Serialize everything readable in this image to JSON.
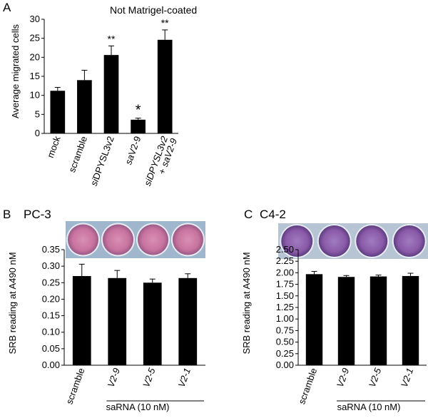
{
  "chart_data": [
    {
      "panel": "A",
      "type": "bar",
      "title": "Not Matrigel-coated",
      "ylabel": "Average migrated cells",
      "ylim": [
        0,
        30
      ],
      "yticks": [
        0,
        5,
        10,
        15,
        20,
        25,
        30
      ],
      "categories": [
        {
          "text": "mock",
          "italic": ""
        },
        {
          "text": "scramble",
          "italic": ""
        },
        {
          "text": "DPYSL3v2",
          "italic": "si"
        },
        {
          "text": "V2-9",
          "italic": "sa"
        },
        {
          "text": "siDPYSL3v2",
          "italic": "",
          "line2": "+ ",
          "line2_italic": "saV2-9"
        }
      ],
      "values": [
        11.2,
        14.0,
        20.6,
        3.6,
        24.6
      ],
      "errors": [
        0.9,
        2.6,
        2.4,
        0.4,
        2.6
      ],
      "significance": [
        "",
        "",
        "**",
        "*",
        "**"
      ],
      "bar_color": "#000000"
    },
    {
      "panel": "B",
      "type": "bar",
      "title": "PC-3",
      "ylabel": "SRB reading at A490 nM",
      "ylim": [
        0,
        0.35
      ],
      "yticks": [
        "0.00",
        "0.05",
        "0.10",
        "0.15",
        "0.20",
        "0.25",
        "0.30",
        "0.35"
      ],
      "categories": [
        "scramble",
        "V2-9",
        "V2-5",
        "V2-1"
      ],
      "values": [
        0.27,
        0.264,
        0.25,
        0.264
      ],
      "errors": [
        0.036,
        0.023,
        0.011,
        0.013
      ],
      "group_label": "saRNA (10 nM)",
      "bar_color": "#000000"
    },
    {
      "panel": "C",
      "type": "bar",
      "title": "C4-2",
      "ylabel": "SRB reading at A490 nM",
      "ylim": [
        0,
        2.5
      ],
      "yticks": [
        "0.00",
        "0.25",
        "0.50",
        "0.75",
        "1.00",
        "1.25",
        "1.50",
        "1.75",
        "2.00",
        "2.25",
        "2.50"
      ],
      "categories": [
        "scramble",
        "V2-9",
        "V2-5",
        "V2-1"
      ],
      "values": [
        1.97,
        1.91,
        1.92,
        1.93
      ],
      "errors": [
        0.06,
        0.03,
        0.03,
        0.06
      ],
      "group_label": "saRNA (10 nM)",
      "bar_color": "#000000"
    }
  ],
  "well_images": {
    "B": {
      "icon": "stained-wells-photo",
      "count": 4,
      "frame_color": "#9fb6cd",
      "well_color": "#c8739f"
    },
    "C": {
      "icon": "stained-wells-photo",
      "count": 4,
      "frame_color": "#b6c4d4",
      "well_color": "#8a5aa8"
    }
  }
}
